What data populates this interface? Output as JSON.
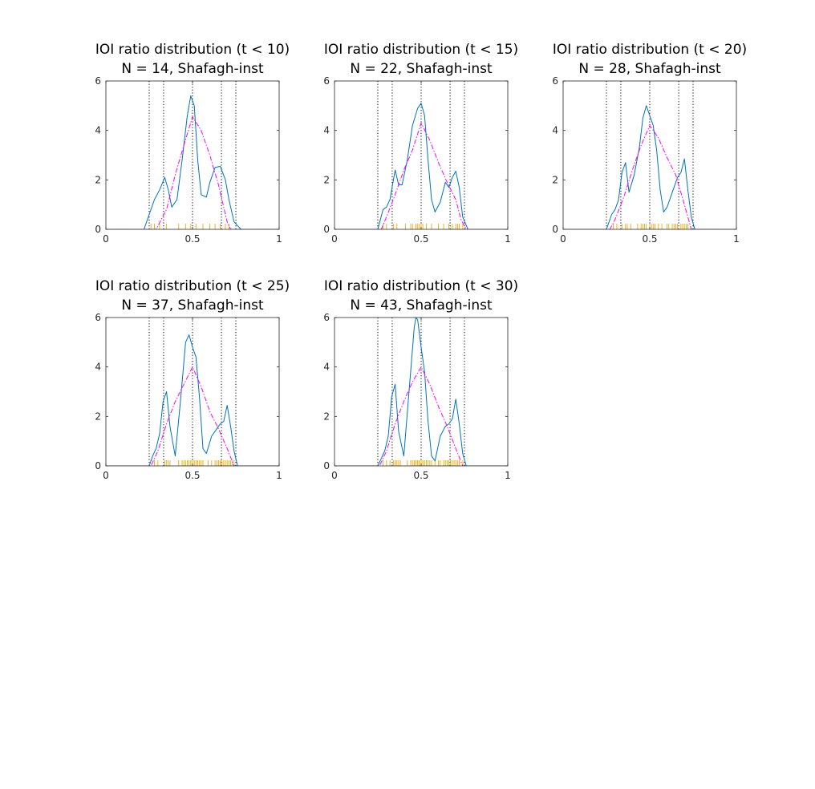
{
  "figure": {
    "background": "#ffffff"
  },
  "colors": {
    "kde": "#0072BD",
    "reference": "#FF00FF",
    "rug": "#EDB120",
    "axis": "#262626"
  },
  "chart_data": [
    {
      "type": "line",
      "title": "IOI ratio distribution (t < 10)",
      "subtitle": "N = 14, Shafagh-inst",
      "xlim": [
        0,
        1
      ],
      "ylim": [
        0,
        6
      ],
      "xticks": [
        0,
        0.5,
        1
      ],
      "xtick_labels": [
        "0",
        "0.5",
        "1"
      ],
      "yticks": [
        0,
        2,
        4,
        6
      ],
      "ytick_labels": [
        "0",
        "2",
        "4",
        "6"
      ],
      "vlines": [
        0.25,
        0.333,
        0.5,
        0.667,
        0.75
      ],
      "series": [
        {
          "style": "solid",
          "color": "#0072BD",
          "x": [
            0,
            0.22,
            0.25,
            0.28,
            0.31,
            0.34,
            0.36,
            0.38,
            0.41,
            0.44,
            0.47,
            0.49,
            0.51,
            0.53,
            0.55,
            0.58,
            0.6,
            0.63,
            0.66,
            0.69,
            0.71,
            0.74,
            0.78,
            1
          ],
          "y": [
            0,
            0,
            0.6,
            1.2,
            1.6,
            2.1,
            1.6,
            0.9,
            1.2,
            2.8,
            4.6,
            5.4,
            5.0,
            2.8,
            1.4,
            1.3,
            1.9,
            2.5,
            2.55,
            2.0,
            1.2,
            0.3,
            0,
            0
          ]
        },
        {
          "style": "dashdot",
          "color": "#FF00FF",
          "x": [
            0,
            0.29,
            0.35,
            0.4,
            0.45,
            0.5,
            0.55,
            0.6,
            0.65,
            0.7,
            0.72,
            1
          ],
          "y": [
            0,
            0,
            0.8,
            2.2,
            3.4,
            4.55,
            4.0,
            3.0,
            1.8,
            0.3,
            0,
            0
          ]
        }
      ],
      "rug": [
        0.26,
        0.28,
        0.31,
        0.35,
        0.42,
        0.46,
        0.49,
        0.52,
        0.56,
        0.6,
        0.63,
        0.66,
        0.69,
        0.71
      ]
    },
    {
      "type": "line",
      "title": "IOI ratio distribution (t < 15)",
      "subtitle": "N = 22, Shafagh-inst",
      "xlim": [
        0,
        1
      ],
      "ylim": [
        0,
        6
      ],
      "xticks": [
        0,
        0.5,
        1
      ],
      "xtick_labels": [
        "0",
        "0.5",
        "1"
      ],
      "yticks": [
        0,
        2,
        4,
        6
      ],
      "ytick_labels": [
        "0",
        "2",
        "4",
        "6"
      ],
      "vlines": [
        0.25,
        0.333,
        0.5,
        0.667,
        0.75
      ],
      "series": [
        {
          "style": "solid",
          "color": "#0072BD",
          "x": [
            0,
            0.25,
            0.28,
            0.3,
            0.32,
            0.35,
            0.37,
            0.39,
            0.42,
            0.45,
            0.48,
            0.5,
            0.52,
            0.54,
            0.56,
            0.58,
            0.61,
            0.64,
            0.66,
            0.68,
            0.7,
            0.72,
            0.74,
            0.77,
            1
          ],
          "y": [
            0,
            0,
            0.8,
            0.9,
            1.2,
            2.4,
            1.8,
            1.8,
            2.8,
            4.2,
            4.9,
            5.1,
            4.6,
            2.8,
            1.2,
            0.7,
            1.1,
            1.9,
            1.7,
            2.1,
            2.35,
            1.7,
            0.5,
            0,
            0
          ]
        },
        {
          "style": "dashdot",
          "color": "#FF00FF",
          "x": [
            0,
            0.27,
            0.3,
            0.35,
            0.4,
            0.45,
            0.5,
            0.55,
            0.6,
            0.65,
            0.7,
            0.73,
            0.76,
            1
          ],
          "y": [
            0,
            0,
            0.5,
            1.4,
            2.4,
            3.2,
            4.3,
            3.6,
            2.7,
            1.9,
            1.2,
            0.4,
            0,
            0
          ]
        }
      ],
      "rug": [
        0.28,
        0.3,
        0.34,
        0.36,
        0.41,
        0.44,
        0.45,
        0.47,
        0.48,
        0.49,
        0.5,
        0.51,
        0.53,
        0.56,
        0.6,
        0.63,
        0.66,
        0.68,
        0.7,
        0.71,
        0.72,
        0.74
      ]
    },
    {
      "type": "line",
      "title": "IOI ratio distribution (t < 20)",
      "subtitle": "N = 28, Shafagh-inst",
      "xlim": [
        0,
        1
      ],
      "ylim": [
        0,
        6
      ],
      "xticks": [
        0,
        0.5,
        1
      ],
      "xtick_labels": [
        "0",
        "0.5",
        "1"
      ],
      "yticks": [
        0,
        2,
        4,
        6
      ],
      "ytick_labels": [
        "0",
        "2",
        "4",
        "6"
      ],
      "vlines": [
        0.25,
        0.333,
        0.5,
        0.667,
        0.75
      ],
      "series": [
        {
          "style": "solid",
          "color": "#0072BD",
          "x": [
            0,
            0.25,
            0.28,
            0.3,
            0.32,
            0.34,
            0.36,
            0.38,
            0.41,
            0.44,
            0.46,
            0.48,
            0.5,
            0.52,
            0.54,
            0.56,
            0.58,
            0.6,
            0.63,
            0.66,
            0.68,
            0.7,
            0.72,
            0.74,
            0.76,
            1
          ],
          "y": [
            0,
            0,
            0.6,
            0.8,
            1.2,
            2.3,
            2.7,
            1.5,
            2.2,
            3.3,
            4.5,
            5.0,
            4.6,
            4.2,
            3.2,
            1.6,
            0.7,
            0.9,
            1.5,
            2.1,
            2.3,
            2.85,
            1.6,
            0.5,
            0,
            0
          ]
        },
        {
          "style": "dashdot",
          "color": "#FF00FF",
          "x": [
            0,
            0.27,
            0.3,
            0.35,
            0.4,
            0.45,
            0.5,
            0.55,
            0.6,
            0.65,
            0.7,
            0.74,
            1
          ],
          "y": [
            0,
            0,
            0.4,
            1.3,
            2.4,
            3.4,
            4.2,
            3.7,
            2.9,
            2.2,
            1.0,
            0,
            0
          ]
        }
      ],
      "rug": [
        0.29,
        0.31,
        0.34,
        0.36,
        0.37,
        0.39,
        0.43,
        0.45,
        0.46,
        0.47,
        0.48,
        0.5,
        0.51,
        0.52,
        0.53,
        0.55,
        0.57,
        0.6,
        0.61,
        0.63,
        0.64,
        0.65,
        0.66,
        0.68,
        0.69,
        0.7,
        0.71,
        0.72
      ]
    },
    {
      "type": "line",
      "title": "IOI ratio distribution (t < 25)",
      "subtitle": "N = 37, Shafagh-inst",
      "xlim": [
        0,
        1
      ],
      "ylim": [
        0,
        6
      ],
      "xticks": [
        0,
        0.5,
        1
      ],
      "xtick_labels": [
        "0",
        "0.5",
        "1"
      ],
      "yticks": [
        0,
        2,
        4,
        6
      ],
      "ytick_labels": [
        "0",
        "2",
        "4",
        "6"
      ],
      "vlines": [
        0.25,
        0.333,
        0.5,
        0.667,
        0.75
      ],
      "series": [
        {
          "style": "solid",
          "color": "#0072BD",
          "x": [
            0,
            0.25,
            0.27,
            0.29,
            0.31,
            0.33,
            0.35,
            0.37,
            0.4,
            0.43,
            0.46,
            0.48,
            0.5,
            0.52,
            0.54,
            0.56,
            0.58,
            0.61,
            0.64,
            0.66,
            0.68,
            0.7,
            0.72,
            0.74,
            0.76,
            1
          ],
          "y": [
            0,
            0,
            0.4,
            0.7,
            1.3,
            2.6,
            3.0,
            1.6,
            0.4,
            2.6,
            5.0,
            5.3,
            4.8,
            4.4,
            2.8,
            0.7,
            0.5,
            1.2,
            1.5,
            1.7,
            1.8,
            2.45,
            1.6,
            0.6,
            0,
            0
          ]
        },
        {
          "style": "dashdot",
          "color": "#FF00FF",
          "x": [
            0,
            0.26,
            0.3,
            0.35,
            0.4,
            0.45,
            0.5,
            0.55,
            0.6,
            0.65,
            0.7,
            0.74,
            1
          ],
          "y": [
            0,
            0,
            0.6,
            1.7,
            2.6,
            3.3,
            4.0,
            3.2,
            2.2,
            1.5,
            0.7,
            0,
            0
          ]
        }
      ],
      "rug": [
        0.28,
        0.3,
        0.34,
        0.35,
        0.36,
        0.37,
        0.42,
        0.44,
        0.45,
        0.46,
        0.47,
        0.47,
        0.48,
        0.49,
        0.49,
        0.5,
        0.51,
        0.51,
        0.52,
        0.53,
        0.54,
        0.55,
        0.56,
        0.59,
        0.61,
        0.63,
        0.64,
        0.65,
        0.66,
        0.67,
        0.68,
        0.69,
        0.7,
        0.71,
        0.72,
        0.73,
        0.74
      ]
    },
    {
      "type": "line",
      "title": "IOI ratio distribution (t < 30)",
      "subtitle": "N = 43, Shafagh-inst",
      "xlim": [
        0,
        1
      ],
      "ylim": [
        0,
        6
      ],
      "xticks": [
        0,
        0.5,
        1
      ],
      "xtick_labels": [
        "0",
        "0.5",
        "1"
      ],
      "yticks": [
        0,
        2,
        4,
        6
      ],
      "ytick_labels": [
        "0",
        "2",
        "4",
        "6"
      ],
      "vlines": [
        0.25,
        0.333,
        0.5,
        0.667,
        0.75
      ],
      "series": [
        {
          "style": "solid",
          "color": "#0072BD",
          "x": [
            0,
            0.25,
            0.27,
            0.29,
            0.31,
            0.33,
            0.35,
            0.37,
            0.4,
            0.43,
            0.46,
            0.47,
            0.48,
            0.5,
            0.52,
            0.54,
            0.56,
            0.58,
            0.61,
            0.64,
            0.66,
            0.68,
            0.7,
            0.72,
            0.74,
            0.76,
            1
          ],
          "y": [
            0,
            0,
            0.3,
            0.6,
            1.2,
            2.8,
            3.3,
            1.4,
            0.4,
            3.0,
            5.6,
            6.0,
            5.9,
            4.8,
            3.8,
            1.8,
            0.4,
            0.2,
            1.2,
            1.6,
            1.7,
            1.9,
            2.7,
            1.7,
            0.5,
            0,
            0
          ]
        },
        {
          "style": "dashdot",
          "color": "#FF00FF",
          "x": [
            0,
            0.26,
            0.3,
            0.35,
            0.4,
            0.45,
            0.5,
            0.55,
            0.6,
            0.65,
            0.7,
            0.74,
            1
          ],
          "y": [
            0,
            0,
            0.6,
            1.7,
            2.6,
            3.4,
            4.0,
            3.3,
            2.4,
            1.6,
            0.7,
            0,
            0
          ]
        }
      ],
      "rug": [
        0.28,
        0.3,
        0.32,
        0.34,
        0.35,
        0.36,
        0.37,
        0.38,
        0.42,
        0.44,
        0.45,
        0.46,
        0.46,
        0.47,
        0.47,
        0.48,
        0.48,
        0.49,
        0.49,
        0.5,
        0.5,
        0.51,
        0.51,
        0.52,
        0.53,
        0.53,
        0.54,
        0.55,
        0.56,
        0.58,
        0.6,
        0.61,
        0.63,
        0.64,
        0.65,
        0.66,
        0.67,
        0.68,
        0.69,
        0.7,
        0.71,
        0.72,
        0.74
      ]
    }
  ]
}
